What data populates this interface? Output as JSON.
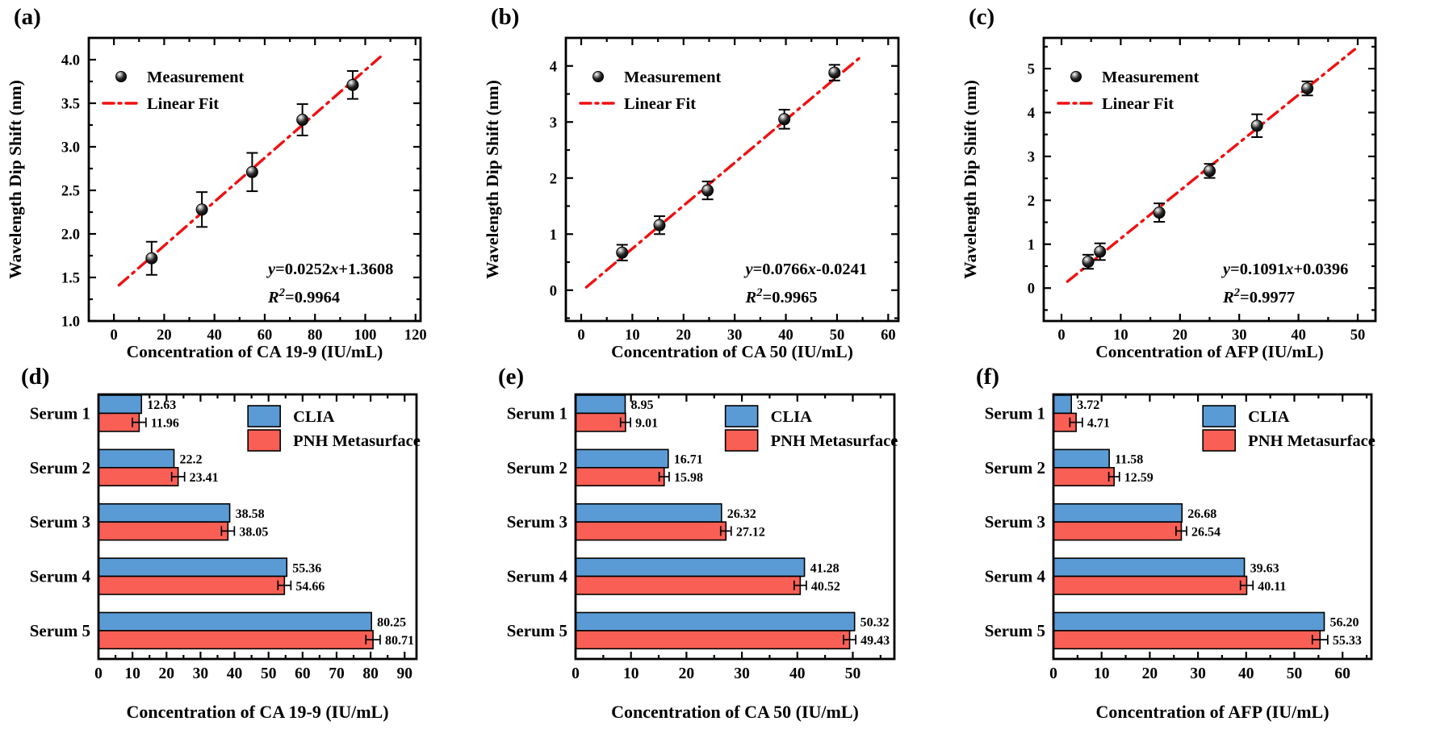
{
  "figure": {
    "background": "#ffffff",
    "description": "Six-panel biosensor calibration and serum comparison figure"
  },
  "colors": {
    "clia_blue": "#5B9BD5",
    "pnh_red": "#FA5F55",
    "fit_line": "#F01010",
    "axis": "#000000",
    "error_bar": "#000000",
    "text": "#000000"
  },
  "chart_data": [
    {
      "panel": "(a)",
      "type": "scatter",
      "xlabel": "Concentration of CA 19-9 (IU/mL)",
      "ylabel": "Wavelength Dip Shift (nm)",
      "xlim": [
        -10,
        122
      ],
      "xticks": [
        0,
        20,
        40,
        60,
        80,
        100,
        120
      ],
      "xminor": 10,
      "ylim": [
        1.0,
        4.25
      ],
      "yticks": [
        1.0,
        1.5,
        2.0,
        2.5,
        3.0,
        3.5,
        4.0
      ],
      "ytick_labels": [
        "1.0",
        "1.5",
        "2.0",
        "2.5",
        "3.0",
        "3.5",
        "4.0"
      ],
      "yminor": 0.25,
      "points": {
        "x": [
          15,
          35,
          55,
          75,
          95
        ],
        "y": [
          1.72,
          2.28,
          2.71,
          3.31,
          3.71
        ],
        "yerr": [
          0.19,
          0.2,
          0.22,
          0.18,
          0.16
        ]
      },
      "fit": {
        "slope": 0.0252,
        "intercept": 1.3608,
        "x_range": [
          2,
          106
        ]
      },
      "legend": {
        "measurement": "Measurement",
        "linear_fit": "Linear Fit"
      },
      "equation": "y=0.0252x+1.3608",
      "r_squared": "R²=0.9964"
    },
    {
      "panel": "(b)",
      "type": "scatter",
      "xlabel": "Concentration of CA 50 (IU/mL)",
      "ylabel": "Wavelength Dip Shift (nm)",
      "xlim": [
        -3,
        62
      ],
      "xticks": [
        0,
        10,
        20,
        30,
        40,
        50,
        60
      ],
      "xminor": 5,
      "ylim": [
        -0.55,
        4.5
      ],
      "yticks": [
        0,
        1,
        2,
        3,
        4
      ],
      "ytick_labels": [
        "0",
        "1",
        "2",
        "3",
        "4"
      ],
      "yminor": 0.5,
      "points": {
        "x": [
          8,
          15.3,
          24.7,
          39.7,
          49.5
        ],
        "y": [
          0.67,
          1.16,
          1.78,
          3.05,
          3.88
        ],
        "yerr": [
          0.14,
          0.16,
          0.16,
          0.17,
          0.14
        ]
      },
      "fit": {
        "slope": 0.0766,
        "intercept": -0.0241,
        "x_range": [
          1,
          54.5
        ]
      },
      "legend": {
        "measurement": "Measurement",
        "linear_fit": "Linear Fit"
      },
      "equation": "y=0.0766x-0.0241",
      "r_squared": "R²=0.9965"
    },
    {
      "panel": "(c)",
      "type": "scatter",
      "xlabel": "Concentration of AFP (IU/mL)",
      "ylabel": "Wavelength Dip Shift (nm)",
      "xlim": [
        -3,
        53
      ],
      "xticks": [
        0,
        10,
        20,
        30,
        40,
        50
      ],
      "xminor": 5,
      "ylim": [
        -0.75,
        5.7
      ],
      "yticks": [
        0,
        1,
        2,
        3,
        4,
        5
      ],
      "ytick_labels": [
        "0",
        "1",
        "2",
        "3",
        "4",
        "5"
      ],
      "yminor": 0.5,
      "points": {
        "x": [
          4.5,
          6.5,
          16.5,
          25,
          33,
          41.5
        ],
        "y": [
          0.6,
          0.83,
          1.72,
          2.67,
          3.7,
          4.55
        ],
        "yerr": [
          0.16,
          0.19,
          0.21,
          0.16,
          0.26,
          0.16
        ]
      },
      "fit": {
        "slope": 0.1091,
        "intercept": 0.0396,
        "x_range": [
          1,
          49.5
        ]
      },
      "legend": {
        "measurement": "Measurement",
        "linear_fit": "Linear Fit"
      },
      "equation": "y=0.1091x+0.0396",
      "r_squared": "R²=0.9977"
    },
    {
      "panel": "(d)",
      "type": "bar",
      "xlabel": "Concentration of CA 19-9 (IU/mL)",
      "categories": [
        "Serum 1",
        "Serum 2",
        "Serum 3",
        "Serum 4",
        "Serum 5"
      ],
      "series": [
        {
          "name": "CLIA",
          "color_key": "clia_blue",
          "values": [
            12.63,
            22.2,
            38.58,
            55.36,
            80.25
          ],
          "labels": [
            "12.63",
            "22.2",
            "38.58",
            "55.36",
            "80.25"
          ]
        },
        {
          "name": "PNH Metasurface",
          "color_key": "pnh_red",
          "values": [
            11.96,
            23.41,
            38.05,
            54.66,
            80.71
          ],
          "labels": [
            "11.96",
            "23.41",
            "38.05",
            "54.66",
            "80.71"
          ],
          "xerr": [
            2.0,
            1.9,
            1.9,
            1.9,
            2.1
          ]
        }
      ],
      "xlim": [
        0,
        93.5
      ],
      "xticks": [
        0,
        10,
        20,
        30,
        40,
        50,
        60,
        70,
        80,
        90
      ],
      "xminor": 5
    },
    {
      "panel": "(e)",
      "type": "bar",
      "xlabel": "Concentration of CA 50 (IU/mL)",
      "categories": [
        "Serum 1",
        "Serum 2",
        "Serum 3",
        "Serum 4",
        "Serum 5"
      ],
      "series": [
        {
          "name": "CLIA",
          "color_key": "clia_blue",
          "values": [
            8.95,
            16.71,
            26.32,
            41.28,
            50.32
          ],
          "labels": [
            "8.95",
            "16.71",
            "26.32",
            "41.28",
            "50.32"
          ]
        },
        {
          "name": "PNH Metasurface",
          "color_key": "pnh_red",
          "values": [
            9.01,
            15.98,
            27.12,
            40.52,
            49.43
          ],
          "labels": [
            "9.01",
            "15.98",
            "27.12",
            "40.52",
            "49.43"
          ],
          "xerr": [
            0.9,
            0.9,
            0.95,
            1.1,
            1.1
          ]
        }
      ],
      "xlim": [
        0,
        57.5
      ],
      "xticks": [
        0,
        10,
        20,
        30,
        40,
        50
      ],
      "xminor": 5
    },
    {
      "panel": "(f)",
      "type": "bar",
      "xlabel": "Concentration of AFP (IU/mL)",
      "categories": [
        "Serum 1",
        "Serum 2",
        "Serum 3",
        "Serum 4",
        "Serum 5"
      ],
      "series": [
        {
          "name": "CLIA",
          "color_key": "clia_blue",
          "values": [
            3.72,
            11.58,
            26.68,
            39.63,
            56.2
          ],
          "labels": [
            "3.72",
            "11.58",
            "26.68",
            "39.63",
            "56.20"
          ]
        },
        {
          "name": "PNH Metasurface",
          "color_key": "pnh_red",
          "values": [
            4.71,
            12.59,
            26.54,
            40.11,
            55.33
          ],
          "labels": [
            "4.71",
            "12.59",
            "26.54",
            "40.11",
            "55.33"
          ],
          "xerr": [
            1.3,
            1.1,
            1.1,
            1.3,
            1.6
          ]
        }
      ],
      "xlim": [
        0,
        66
      ],
      "xticks": [
        0,
        10,
        20,
        30,
        40,
        50,
        60
      ],
      "xminor": 5
    }
  ]
}
